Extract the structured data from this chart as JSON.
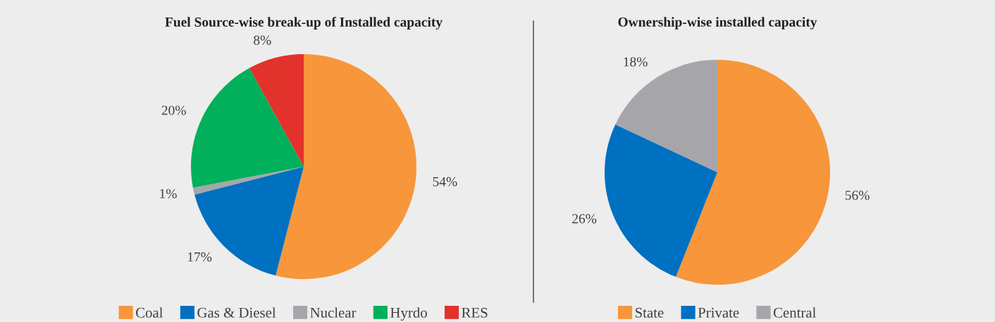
{
  "chart_data": [
    {
      "type": "pie",
      "title": "Fuel Source-wise break-up of Installed capacity",
      "categories": [
        "Coal",
        "Gas & Diesel",
        "Nuclear",
        "Hyrdo",
        "RES"
      ],
      "values": [
        54,
        17,
        1,
        20,
        8
      ],
      "value_labels": [
        "54%",
        "17%",
        "1%",
        "20%",
        "8%"
      ],
      "colors": [
        "#f7963a",
        "#0070c0",
        "#a6a6aa",
        "#00b05a",
        "#e3312b"
      ],
      "legend": "bottom"
    },
    {
      "type": "pie",
      "title": "Ownership-wise installed capacity",
      "categories": [
        "State",
        "Private",
        "Central"
      ],
      "values": [
        56,
        26,
        18
      ],
      "value_labels": [
        "56%",
        "26%",
        "18%"
      ],
      "colors": [
        "#f7963a",
        "#0070c0",
        "#a6a6aa"
      ],
      "legend": "bottom"
    }
  ]
}
